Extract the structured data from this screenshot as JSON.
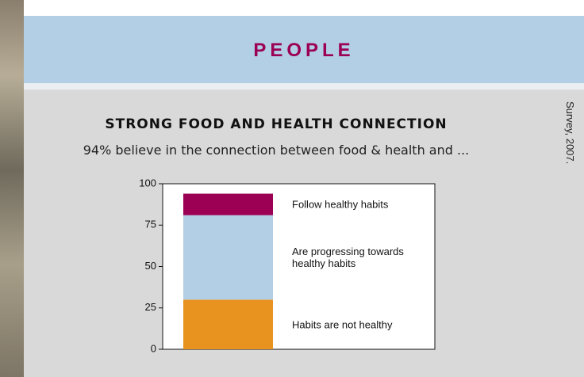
{
  "header": {
    "title": "PEOPLE"
  },
  "source_note": "Survey, 2007.",
  "chart_data": {
    "type": "bar",
    "stacked": true,
    "title": "STRONG FOOD AND HEALTH CONNECTION",
    "subtitle": "94% believe in the connection between food & health and ...",
    "categories": [
      null
    ],
    "series": [
      {
        "name": "Habits are not healthy",
        "color": "#e8921f",
        "values": [
          30
        ]
      },
      {
        "name": "Are progressing towards healthy habits",
        "color": "#b3cfe6",
        "values": [
          51
        ]
      },
      {
        "name": "Follow healthy habits",
        "color": "#9b0055",
        "values": [
          13
        ]
      }
    ],
    "ylim": [
      0,
      100
    ],
    "yticks": [
      0,
      25,
      50,
      75,
      100
    ]
  }
}
